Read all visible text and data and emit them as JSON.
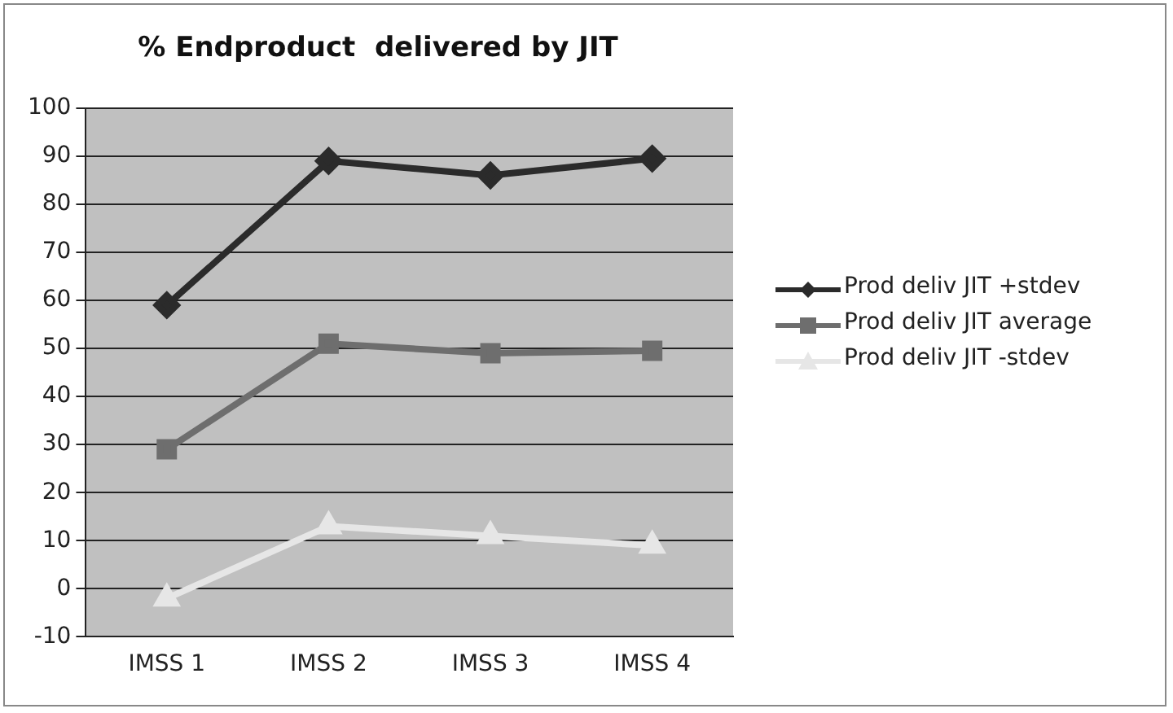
{
  "chart_data": {
    "type": "line",
    "title": "% Endproduct  delivered by JIT",
    "categories": [
      "IMSS 1",
      "IMSS 2",
      "IMSS 3",
      "IMSS 4"
    ],
    "series": [
      {
        "name": "Prod deliv JIT +stdev",
        "color": "#2b2b2b",
        "marker": "diamond",
        "values": [
          59,
          89,
          86,
          89.5
        ]
      },
      {
        "name": "Prod deliv JIT average",
        "color": "#6e6e6e",
        "marker": "square",
        "values": [
          29,
          51,
          49,
          49.5
        ]
      },
      {
        "name": "Prod deliv JIT -stdev",
        "color": "#e6e6e6",
        "marker": "triangle",
        "values": [
          -2,
          13,
          11,
          9
        ]
      }
    ],
    "ylim": [
      -10,
      100
    ],
    "yticks": [
      -10,
      0,
      10,
      20,
      30,
      40,
      50,
      60,
      70,
      80,
      90,
      100
    ],
    "grid": "y",
    "legend": "right"
  }
}
